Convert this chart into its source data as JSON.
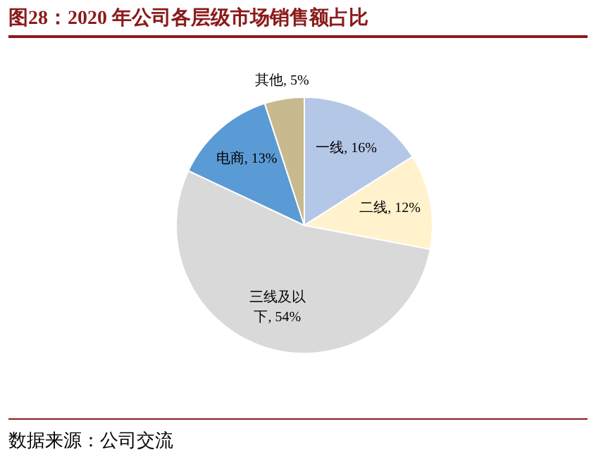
{
  "chart_data": {
    "type": "pie",
    "title": "图28：2020 年公司各层级市场销售额占比",
    "categories": [
      "一线",
      "二线",
      "三线及以下",
      "电商",
      "其他"
    ],
    "values": [
      16,
      12,
      54,
      13,
      5
    ],
    "value_labels": [
      "16%",
      "12%",
      "54%",
      "13%",
      "5%"
    ],
    "colors": [
      "#b4c7e7",
      "#fff2cc",
      "#d9d9d9",
      "#5b9bd5",
      "#c9b98f"
    ],
    "annotations": [
      "数据来源：公司交流"
    ]
  }
}
